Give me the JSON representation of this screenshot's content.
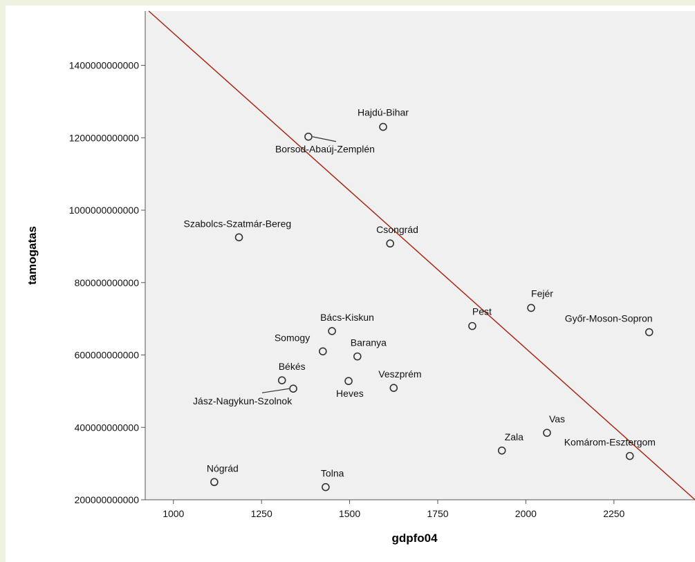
{
  "chart_data": {
    "type": "scatter",
    "xlabel": "gdpfo04",
    "ylabel": "tamogatas",
    "xlim": [
      920,
      2480
    ],
    "ylim": [
      200000000000,
      1550000000000
    ],
    "x_ticks": [
      1000,
      1250,
      1500,
      1750,
      2000,
      2250
    ],
    "y_ticks": [
      200000000000,
      400000000000,
      600000000000,
      800000000000,
      1000000000000,
      1200000000000,
      1400000000000
    ],
    "x_tick_labels": [
      "1000",
      "1250",
      "1500",
      "1750",
      "2000",
      "2250"
    ],
    "y_tick_labels": [
      "200000000000",
      "400000000000",
      "600000000000",
      "800000000000",
      "1000000000000",
      "1200000000000",
      "1400000000000"
    ],
    "grid": false,
    "background_color": "#f0f0f0",
    "marker_color": "#333333",
    "reference_line": {
      "color": "#a32a14",
      "start": [
        930,
        1550000000000
      ],
      "end": [
        2480,
        200000000000
      ]
    },
    "points": [
      {
        "label": "Hajdú-Bihar",
        "x": 1595,
        "y": 1230000000000
      },
      {
        "label": "Borsod-Abaúj-Zemplén",
        "x": 1383,
        "y": 1203000000000
      },
      {
        "label": "Szabolcs-Szatmár-Bereg",
        "x": 1186,
        "y": 925000000000
      },
      {
        "label": "Csongrád",
        "x": 1615,
        "y": 908000000000
      },
      {
        "label": "Fejér",
        "x": 2015,
        "y": 730000000000
      },
      {
        "label": "Pest",
        "x": 1848,
        "y": 680000000000
      },
      {
        "label": "Győr-Moson-Sopron",
        "x": 2350,
        "y": 663000000000
      },
      {
        "label": "Bács-Kiskun",
        "x": 1450,
        "y": 666000000000
      },
      {
        "label": "Somogy",
        "x": 1424,
        "y": 610000000000
      },
      {
        "label": "Baranya",
        "x": 1522,
        "y": 596000000000
      },
      {
        "label": "Békés",
        "x": 1308,
        "y": 530000000000
      },
      {
        "label": "Jász-Nagykun-Szolnok",
        "x": 1340,
        "y": 507000000000
      },
      {
        "label": "Heves",
        "x": 1497,
        "y": 528000000000
      },
      {
        "label": "Veszprém",
        "x": 1625,
        "y": 509000000000
      },
      {
        "label": "Vas",
        "x": 2060,
        "y": 385000000000
      },
      {
        "label": "Zala",
        "x": 1932,
        "y": 336000000000
      },
      {
        "label": "Komárom-Esztergom",
        "x": 2295,
        "y": 321000000000
      },
      {
        "label": "Nógrád",
        "x": 1116,
        "y": 249000000000
      },
      {
        "label": "Tolna",
        "x": 1432,
        "y": 235000000000
      }
    ]
  }
}
